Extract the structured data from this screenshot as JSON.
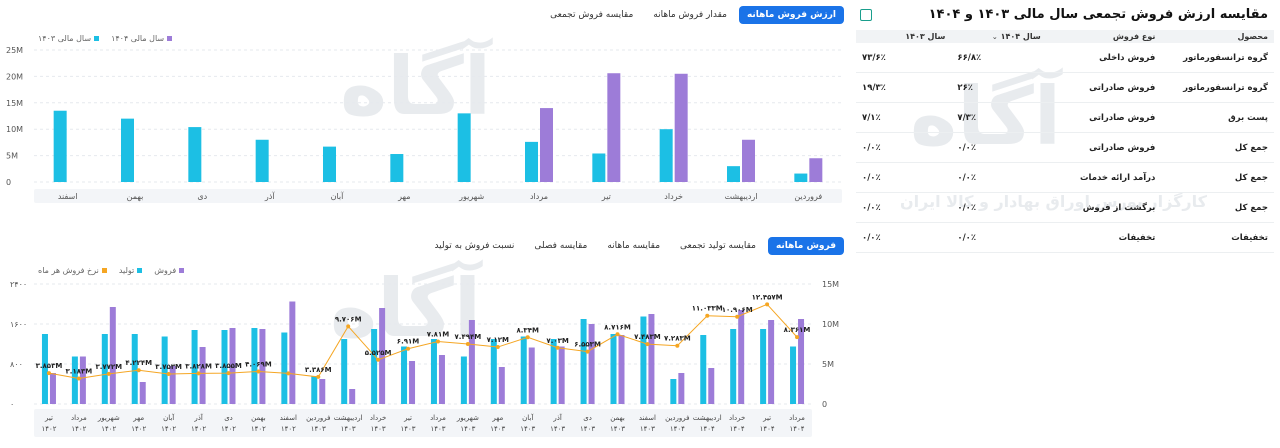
{
  "table_panel": {
    "title": "مقایسه ارزش فروش تجمعی سال مالی ۱۴۰۳ و ۱۴۰۴",
    "headers": {
      "product": "محصول",
      "type": "نوع فروش",
      "y1404": "سال ۱۴۰۴",
      "y1403": "سال ۱۴۰۳"
    },
    "rows": [
      {
        "product": "گروه ترانسفورماتور",
        "type": "فروش داخلی",
        "y1404": "۶۶/۸٪",
        "y1403": "۷۳/۶٪"
      },
      {
        "product": "گروه ترانسفورماتور",
        "type": "فروش صادراتی",
        "y1404": "۲۶٪",
        "y1403": "۱۹/۳٪"
      },
      {
        "product": "پست برق",
        "type": "فروش صادراتی",
        "y1404": "۷/۳٪",
        "y1403": "۷/۱٪"
      },
      {
        "product": "جمع کل",
        "type": "فروش صادراتی",
        "y1404": "۰/۰٪",
        "y1403": "۰/۰٪"
      },
      {
        "product": "جمع کل",
        "type": "درآمد ارائه خدمات",
        "y1404": "۰/۰٪",
        "y1403": "۰/۰٪"
      },
      {
        "product": "جمع کل",
        "type": "برگشت از فروش",
        "y1404": "۰/۰٪",
        "y1403": "۰/۰٪"
      },
      {
        "product": "تخفیفات",
        "type": "تخفیفات",
        "y1404": "۰/۰٪",
        "y1403": "۰/۰٪"
      }
    ]
  },
  "top_tabs": [
    "ارزش فروش ماهانه",
    "مقدار فروش ماهانه",
    "مقایسه فروش تجمعی"
  ],
  "bottom_tabs": [
    "فروش ماهانه",
    "مقایسه تولید تجمعی",
    "مقایسه ماهانه",
    "مقایسه فصلی",
    "نسبت فروش به تولید"
  ],
  "watermark": {
    "brand": "آگاه",
    "tagline": "کارگزار بورس اوراق بهادار و کالا ایران"
  },
  "colors": {
    "cyan": "#1cbfe4",
    "purple": "#9d7cd8",
    "orange": "#f5a623",
    "accent": "#1a73e8"
  },
  "chart_data": [
    {
      "type": "bar",
      "legend": [
        "سال مالی ۱۴۰۴",
        "سال مالی ۱۴۰۳"
      ],
      "y_ticks": [
        "25M",
        "20M",
        "15M",
        "10M",
        "5M",
        "0"
      ],
      "ylim": [
        0,
        25000000
      ],
      "categories": [
        "فروردین",
        "اردیبهشت",
        "خرداد",
        "تیر",
        "مرداد",
        "شهریور",
        "مهر",
        "آبان",
        "آذر",
        "دی",
        "بهمن",
        "اسفند"
      ],
      "series": [
        {
          "name": "سال مالی ۱۴۰۳",
          "values": [
            1.6,
            3.0,
            10.0,
            5.4,
            7.6,
            13.0,
            5.3,
            6.7,
            8.0,
            10.4,
            12.0,
            13.5
          ]
        },
        {
          "name": "سال مالی ۱۴۰۴",
          "values": [
            4.5,
            8.0,
            20.5,
            20.6,
            14.0,
            null,
            null,
            null,
            null,
            null,
            null,
            null
          ]
        }
      ],
      "unit_multiplier": 1000000
    },
    {
      "type": "bar",
      "legend": [
        "فروش",
        "تولید",
        "نرخ فروش هر ماه"
      ],
      "y_left_ticks": [
        "۲۴۰۰",
        "۱۶۰۰",
        "۸۰۰",
        "۰"
      ],
      "y_right_ticks": [
        "15M",
        "10M",
        "5M",
        "0"
      ],
      "ylim_left": [
        0,
        2400
      ],
      "ylim_right": [
        0,
        15000000
      ],
      "categories": [
        [
          "تیر",
          "۱۴۰۲"
        ],
        [
          "مرداد",
          "۱۴۰۲"
        ],
        [
          "شهریور",
          "۱۴۰۲"
        ],
        [
          "مهر",
          "۱۴۰۲"
        ],
        [
          "آبان",
          "۱۴۰۲"
        ],
        [
          "آذر",
          "۱۴۰۲"
        ],
        [
          "دی",
          "۱۴۰۲"
        ],
        [
          "بهمن",
          "۱۴۰۲"
        ],
        [
          "اسفند",
          "۱۴۰۲"
        ],
        [
          "فروردین",
          "۱۴۰۳"
        ],
        [
          "اردیبهشت",
          "۱۴۰۳"
        ],
        [
          "خرداد",
          "۱۴۰۳"
        ],
        [
          "تیر",
          "۱۴۰۳"
        ],
        [
          "مرداد",
          "۱۴۰۳"
        ],
        [
          "شهریور",
          "۱۴۰۳"
        ],
        [
          "مهر",
          "۱۴۰۳"
        ],
        [
          "آبان",
          "۱۴۰۳"
        ],
        [
          "آذر",
          "۱۴۰۳"
        ],
        [
          "دی",
          "۱۴۰۳"
        ],
        [
          "بهمن",
          "۱۴۰۳"
        ],
        [
          "اسفند",
          "۱۴۰۳"
        ],
        [
          "فروردین",
          "۱۴۰۴"
        ],
        [
          "اردیبهشت",
          "۱۴۰۴"
        ],
        [
          "خرداد",
          "۱۴۰۴"
        ],
        [
          "تیر",
          "۱۴۰۴"
        ],
        [
          "مرداد",
          "۱۴۰۴"
        ]
      ],
      "series": [
        {
          "name": "تولید",
          "values": [
            1400,
            950,
            1400,
            1400,
            1350,
            1480,
            1480,
            1520,
            1430,
            560,
            1300,
            1500,
            1150,
            1300,
            950,
            1300,
            1350,
            1300,
            1700,
            1400,
            1750,
            500,
            1380,
            1500,
            1500,
            1150
          ]
        },
        {
          "name": "فروش",
          "values": [
            620,
            950,
            1940,
            440,
            760,
            1140,
            1520,
            1500,
            2050,
            500,
            300,
            1920,
            860,
            980,
            1680,
            740,
            1130,
            1150,
            1600,
            1380,
            1800,
            620,
            720,
            1880,
            1680,
            1700
          ]
        },
        {
          "name": "نرخ فروش هر ماه",
          "values": [
            3.853,
            3.183,
            3.772,
            4.224,
            3.753,
            3.828,
            3.855,
            4.069,
            3.828,
            3.386,
            9.706,
            5.525,
            6.91,
            7.81,
            7.494,
            7.12,
            8.34,
            7.03,
            6.553,
            8.716,
            7.483,
            7.283,
            11.033,
            10.906,
            12.457,
            8.361
          ]
        }
      ],
      "rate_labels": [
        "۳.۸۵۳M",
        "۳.۱۸۳M",
        "۳.۷۷۲M",
        "۴.۲۲۴M",
        "۳.۷۵۳M",
        "۳.۸۲۸M",
        "۳.۸۵۵M",
        "۴.۰۶۹M",
        "",
        "۳.۳۸۶M",
        "۹.۷۰۶M",
        "۵.۵۲۵M",
        "۶.۹۱M",
        "۷.۸۱M",
        "۷.۴۹۴M",
        "۷.۱۲M",
        "۸.۳۴M",
        "۷.۰۳M",
        "۶.۵۵۳M",
        "۸.۷۱۶M",
        "۷.۴۸۳M",
        "۷.۲۸۳M",
        "۱۱.۰۳۳M",
        "۱۰.۹۰۶M",
        "۱۲.۴۵۷M",
        "۸.۳۶۱M"
      ]
    }
  ]
}
